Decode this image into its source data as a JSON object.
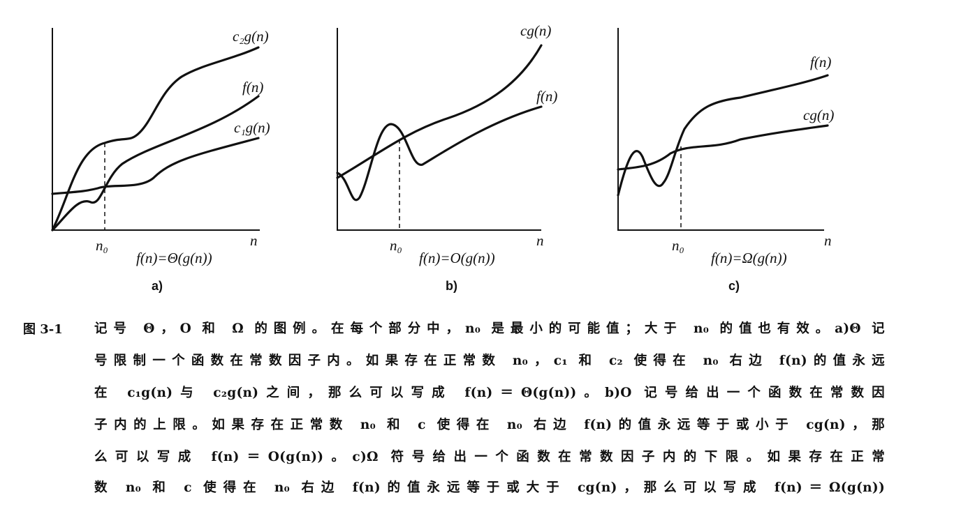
{
  "panels": [
    {
      "id": "a",
      "curve_labels": [
        "c₂g(n)",
        "f(n)",
        "c₁g(n)"
      ],
      "n0": "n₀",
      "n": "n",
      "formula": "f(n)=Θ(g(n))",
      "sub": "a)"
    },
    {
      "id": "b",
      "curve_labels": [
        "cg(n)",
        "f(n)"
      ],
      "n0": "n₀",
      "n": "n",
      "formula": "f(n)=O(g(n))",
      "sub": "b)"
    },
    {
      "id": "c",
      "curve_labels": [
        "f(n)",
        "cg(n)"
      ],
      "n0": "n₀",
      "n": "n",
      "formula": "f(n)=Ω(g(n))",
      "sub": "c)"
    }
  ],
  "caption": {
    "number": "图 3-1",
    "lines": [
      "记号 Θ，O 和 Ω 的图例。在每个部分中，n₀ 是最小的可能值；大于 n₀ 的值也有效。a)Θ 记",
      "号限制一个函数在常数因子内。如果存在正常数 n₀，c₁ 和 c₂ 使得在 n₀ 右边 f(n)的值永远",
      "在 c₁g(n)与 c₂g(n)之间，那么可以写成 f(n)＝Θ(g(n))。b)O 记号给出一个函数在常数因",
      "子内的上限。如果存在正常数 n₀ 和 c 使得在 n₀ 右边 f(n)的值永远等于或小于 cg(n)，那",
      "么可以写成 f(n)＝O(g(n))。c)Ω 符号给出一个函数在常数因子内的下限。如果存在正常",
      "数 n₀ 和 c 使得在 n₀ 右边 f(n)的值永远等于或大于 cg(n)，那么可以写成 f(n)＝Ω(g(n))"
    ]
  }
}
